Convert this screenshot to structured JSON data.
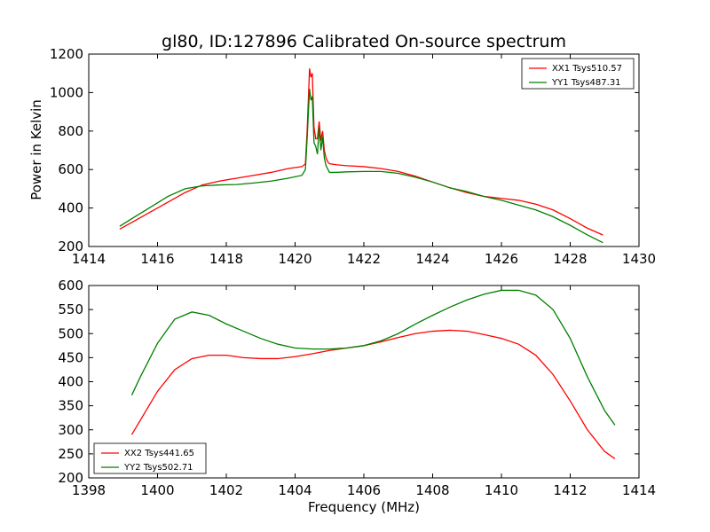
{
  "chart_data": [
    {
      "type": "line",
      "title": "gl80, ID:127896 Calibrated On-source spectrum",
      "xlabel": "",
      "ylabel": "Power in Kelvin",
      "xlim": [
        1414,
        1430
      ],
      "ylim": [
        200,
        1200
      ],
      "xticks": [
        "1414",
        "1416",
        "1418",
        "1420",
        "1422",
        "1424",
        "1426",
        "1428",
        "1430"
      ],
      "yticks": [
        "200",
        "400",
        "600",
        "800",
        "1000",
        "1200"
      ],
      "grid": false,
      "legend_position": "top-right",
      "series": [
        {
          "name": "XX1 Tsys510.57",
          "color": "#ff0000",
          "x": [
            1414.9,
            1415.3,
            1415.8,
            1416.3,
            1416.8,
            1417.3,
            1417.8,
            1418.3,
            1418.8,
            1419.3,
            1419.8,
            1420.2,
            1420.3,
            1420.35,
            1420.42,
            1420.46,
            1420.5,
            1420.55,
            1420.6,
            1420.65,
            1420.7,
            1420.75,
            1420.8,
            1420.85,
            1420.9,
            1420.95,
            1421.0,
            1421.2,
            1421.5,
            1422.0,
            1422.5,
            1423.0,
            1423.5,
            1424.0,
            1424.5,
            1425.0,
            1425.5,
            1426.0,
            1426.5,
            1427.0,
            1427.5,
            1428.0,
            1428.5,
            1428.95
          ],
          "y": [
            290,
            330,
            380,
            430,
            480,
            520,
            540,
            555,
            570,
            585,
            605,
            615,
            630,
            800,
            1125,
            1080,
            1100,
            820,
            760,
            760,
            850,
            750,
            800,
            700,
            660,
            640,
            630,
            625,
            620,
            615,
            605,
            590,
            565,
            535,
            505,
            480,
            460,
            450,
            440,
            420,
            390,
            345,
            295,
            260
          ]
        },
        {
          "name": "YY1 Tsys487.31",
          "color": "#008000",
          "x": [
            1414.9,
            1415.3,
            1415.8,
            1416.3,
            1416.8,
            1417.3,
            1417.8,
            1418.3,
            1418.8,
            1419.3,
            1419.8,
            1420.2,
            1420.3,
            1420.35,
            1420.42,
            1420.46,
            1420.5,
            1420.55,
            1420.6,
            1420.65,
            1420.7,
            1420.75,
            1420.8,
            1420.85,
            1420.9,
            1421.0,
            1421.2,
            1421.5,
            1422.0,
            1422.5,
            1423.0,
            1423.5,
            1424.0,
            1424.5,
            1425.0,
            1425.5,
            1426.0,
            1426.5,
            1427.0,
            1427.5,
            1428.0,
            1428.5,
            1428.95
          ],
          "y": [
            305,
            350,
            405,
            460,
            500,
            515,
            520,
            522,
            530,
            540,
            555,
            570,
            600,
            760,
            1020,
            960,
            980,
            740,
            720,
            680,
            820,
            700,
            770,
            660,
            620,
            585,
            585,
            588,
            590,
            590,
            580,
            560,
            535,
            505,
            485,
            460,
            440,
            415,
            390,
            355,
            310,
            260,
            220
          ]
        }
      ]
    },
    {
      "type": "line",
      "title": "",
      "xlabel": "Frequency (MHz)",
      "ylabel": "",
      "xlim": [
        1398,
        1414
      ],
      "ylim": [
        200,
        600
      ],
      "xticks": [
        "1398",
        "1400",
        "1402",
        "1404",
        "1406",
        "1408",
        "1410",
        "1412",
        "1414"
      ],
      "yticks": [
        "200",
        "250",
        "300",
        "350",
        "400",
        "450",
        "500",
        "550",
        "600"
      ],
      "grid": false,
      "legend_position": "bottom-left",
      "series": [
        {
          "name": "XX2 Tsys441.65",
          "color": "#ff0000",
          "x": [
            1399.25,
            1399.5,
            1400.0,
            1400.5,
            1401.0,
            1401.5,
            1402.0,
            1402.5,
            1403.0,
            1403.5,
            1404.0,
            1404.5,
            1405.0,
            1405.5,
            1406.0,
            1406.5,
            1407.0,
            1407.5,
            1408.0,
            1408.5,
            1409.0,
            1409.5,
            1410.0,
            1410.5,
            1411.0,
            1411.5,
            1412.0,
            1412.5,
            1413.0,
            1413.3
          ],
          "y": [
            290,
            320,
            380,
            425,
            448,
            455,
            455,
            450,
            448,
            448,
            452,
            458,
            465,
            470,
            475,
            483,
            492,
            500,
            505,
            507,
            505,
            498,
            490,
            478,
            455,
            415,
            360,
            300,
            255,
            240
          ]
        },
        {
          "name": "YY2 Tsys502.71",
          "color": "#008000",
          "x": [
            1399.25,
            1399.5,
            1400.0,
            1400.5,
            1401.0,
            1401.5,
            1402.0,
            1402.5,
            1403.0,
            1403.5,
            1404.0,
            1404.5,
            1405.0,
            1405.5,
            1406.0,
            1406.5,
            1407.0,
            1407.5,
            1408.0,
            1408.5,
            1409.0,
            1409.5,
            1410.0,
            1410.5,
            1411.0,
            1411.5,
            1412.0,
            1412.5,
            1413.0,
            1413.3
          ],
          "y": [
            372,
            410,
            480,
            530,
            545,
            538,
            520,
            505,
            490,
            478,
            470,
            468,
            468,
            470,
            475,
            485,
            500,
            520,
            538,
            555,
            570,
            582,
            590,
            590,
            580,
            550,
            490,
            410,
            340,
            310
          ]
        }
      ]
    }
  ]
}
